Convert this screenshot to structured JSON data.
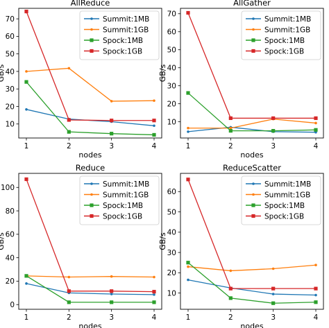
{
  "figure": {
    "background": "#ffffff"
  },
  "chart_data": [
    {
      "type": "line",
      "title": "AllReduce",
      "xlabel": "nodes",
      "ylabel": "GB/s",
      "x": [
        1,
        2,
        3,
        4
      ],
      "xticks": [
        "1",
        "2",
        "3",
        "4"
      ],
      "ylim": [
        2,
        76
      ],
      "yticks": [
        10,
        20,
        30,
        40,
        50,
        60,
        70
      ],
      "grid": false,
      "legend": "top-right",
      "series": [
        {
          "name": "Summit:1MB",
          "color": "#1f77b4",
          "marker": "dot",
          "values": [
            18.3,
            12.8,
            11.3,
            9.0
          ]
        },
        {
          "name": "Summit:1GB",
          "color": "#ff7f0e",
          "marker": "dot",
          "values": [
            40.0,
            41.8,
            23.0,
            23.3
          ]
        },
        {
          "name": "Spock:1MB",
          "color": "#2ca02c",
          "marker": "square",
          "values": [
            34.0,
            5.5,
            4.5,
            3.8
          ]
        },
        {
          "name": "Spock:1GB",
          "color": "#d62728",
          "marker": "square",
          "values": [
            74.2,
            12.3,
            12.0,
            12.0
          ]
        }
      ]
    },
    {
      "type": "line",
      "title": "AllGather",
      "xlabel": "nodes",
      "ylabel": "GB/s",
      "x": [
        1,
        2,
        3,
        4
      ],
      "xticks": [
        "1",
        "2",
        "3",
        "4"
      ],
      "ylim": [
        1,
        73
      ],
      "yticks": [
        10,
        20,
        30,
        40,
        50,
        60,
        70
      ],
      "grid": false,
      "legend": "top-right",
      "series": [
        {
          "name": "Summit:1MB",
          "color": "#1f77b4",
          "marker": "dot",
          "values": [
            4.5,
            7.0,
            4.5,
            4.2
          ]
        },
        {
          "name": "Summit:1GB",
          "color": "#ff7f0e",
          "marker": "dot",
          "values": [
            6.5,
            6.5,
            11.5,
            9.3
          ]
        },
        {
          "name": "Spock:1MB",
          "color": "#2ca02c",
          "marker": "square",
          "values": [
            26.0,
            5.0,
            5.0,
            5.5
          ]
        },
        {
          "name": "Spock:1GB",
          "color": "#d62728",
          "marker": "square",
          "values": [
            70.5,
            12.0,
            12.0,
            12.0
          ]
        }
      ]
    },
    {
      "type": "line",
      "title": "Reduce",
      "xlabel": "nodes",
      "ylabel": "GB/s",
      "x": [
        1,
        2,
        3,
        4
      ],
      "xticks": [
        "1",
        "2",
        "3",
        "4"
      ],
      "ylim": [
        -4,
        112
      ],
      "yticks": [
        0,
        20,
        40,
        60,
        80,
        100
      ],
      "grid": false,
      "legend": "top-right",
      "series": [
        {
          "name": "Summit:1MB",
          "color": "#1f77b4",
          "marker": "dot",
          "values": [
            18.0,
            10.0,
            9.0,
            8.5
          ]
        },
        {
          "name": "Summit:1GB",
          "color": "#ff7f0e",
          "marker": "dot",
          "values": [
            24.5,
            23.5,
            24.0,
            23.5
          ]
        },
        {
          "name": "Spock:1MB",
          "color": "#2ca02c",
          "marker": "square",
          "values": [
            24.5,
            2.0,
            2.0,
            2.0
          ]
        },
        {
          "name": "Spock:1GB",
          "color": "#d62728",
          "marker": "square",
          "values": [
            107.0,
            11.5,
            11.5,
            11.0
          ]
        }
      ]
    },
    {
      "type": "line",
      "title": "ReduceScatter",
      "xlabel": "nodes",
      "ylabel": "GB/s",
      "x": [
        1,
        2,
        3,
        4
      ],
      "xticks": [
        "1",
        "2",
        "3",
        "4"
      ],
      "ylim": [
        2,
        69
      ],
      "yticks": [
        10,
        20,
        30,
        40,
        50,
        60
      ],
      "grid": false,
      "legend": "top-right",
      "series": [
        {
          "name": "Summit:1MB",
          "color": "#1f77b4",
          "marker": "dot",
          "values": [
            16.5,
            12.5,
            9.5,
            9.0
          ]
        },
        {
          "name": "Summit:1GB",
          "color": "#ff7f0e",
          "marker": "dot",
          "values": [
            23.0,
            21.0,
            22.0,
            23.8
          ]
        },
        {
          "name": "Spock:1MB",
          "color": "#2ca02c",
          "marker": "square",
          "values": [
            25.0,
            7.5,
            5.0,
            5.5
          ]
        },
        {
          "name": "Spock:1GB",
          "color": "#d62728",
          "marker": "square",
          "values": [
            66.0,
            12.2,
            12.2,
            12.2
          ]
        }
      ]
    }
  ]
}
